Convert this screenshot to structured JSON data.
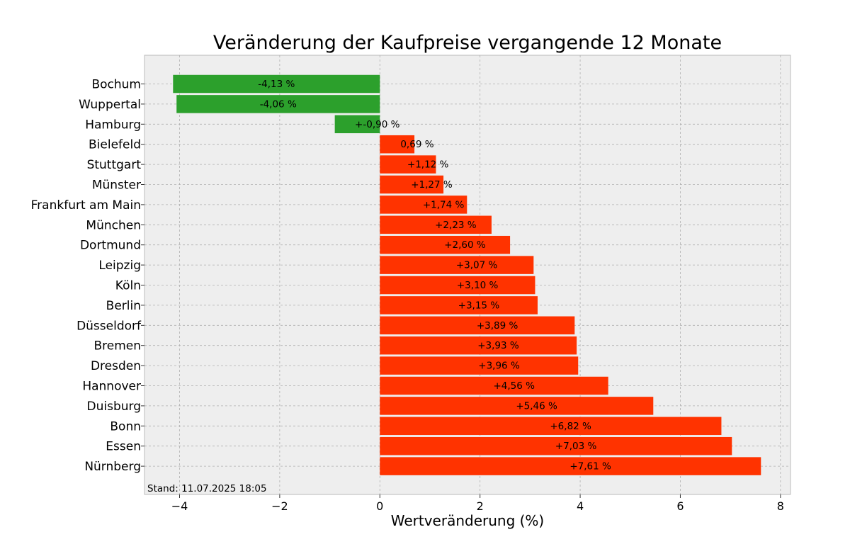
{
  "chart_data": {
    "type": "bar",
    "orientation": "horizontal",
    "title": "Veränderung der Kaufpreise vergangende 12 Monate",
    "xlabel": "Wertveränderung (%)",
    "ylabel": "",
    "xlim": [
      -4.7,
      8.2
    ],
    "xticks": [
      -4,
      -2,
      0,
      2,
      4,
      6,
      8
    ],
    "xtick_labels": [
      "−4",
      "−2",
      "0",
      "2",
      "4",
      "6",
      "8"
    ],
    "grid": true,
    "footnote": "Stand: 11.07.2025 18:05",
    "colors": {
      "negative": "#2ca02c",
      "positive": "#ff3300",
      "plot_bg": "#eeeeee",
      "grid": "#b0b0b0"
    },
    "categories": [
      "Bochum",
      "Wuppertal",
      "Hamburg",
      "Bielefeld",
      "Stuttgart",
      "Münster",
      "Frankfurt am Main",
      "München",
      "Dortmund",
      "Leipzig",
      "Köln",
      "Berlin",
      "Düsseldorf",
      "Bremen",
      "Dresden",
      "Hannover",
      "Duisburg",
      "Bonn",
      "Essen",
      "Nürnberg"
    ],
    "values": [
      -4.13,
      -4.06,
      -0.9,
      0.69,
      1.12,
      1.27,
      1.74,
      2.23,
      2.6,
      3.07,
      3.1,
      3.15,
      3.89,
      3.93,
      3.96,
      4.56,
      5.46,
      6.82,
      7.03,
      7.61
    ],
    "data_labels": [
      "-4,13 %",
      "-4,06 %",
      "+-0,90 %",
      "0,69 %",
      "+1,12 %",
      "+1,27 %",
      "+1,74 %",
      "+2,23 %",
      "+2,60 %",
      "+3,07 %",
      "+3,10 %",
      "+3,15 %",
      "+3,89 %",
      "+3,93 %",
      "+3,96 %",
      "+4,56 %",
      "+5,46 %",
      "+6,82 %",
      "+7,03 %",
      "+7,61 %"
    ]
  }
}
